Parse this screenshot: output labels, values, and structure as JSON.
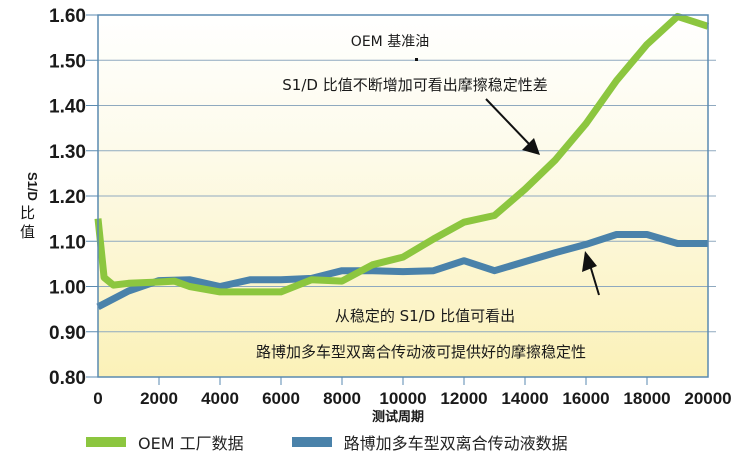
{
  "chart_data": {
    "type": "line",
    "title": "",
    "xlabel": "测试周期",
    "ylabel": "S1/D 比值",
    "xlim": [
      0,
      20000
    ],
    "ylim": [
      0.8,
      1.6
    ],
    "grid": true,
    "legend_position": "bottom",
    "x_ticks": [
      "0",
      "2000",
      "4000",
      "6000",
      "8000",
      "10000",
      "12000",
      "14000",
      "16000",
      "18000",
      "20000"
    ],
    "y_ticks": [
      "0.80",
      "0.90",
      "1.00",
      "1.10",
      "1.20",
      "1.30",
      "1.40",
      "1.50",
      "1.60"
    ],
    "series": [
      {
        "name": "OEM 工厂数据",
        "color": "#8cc63f",
        "x": [
          0,
          200,
          500,
          1000,
          2000,
          2500,
          3000,
          4000,
          5000,
          6000,
          7000,
          8000,
          9000,
          10000,
          11000,
          12000,
          13000,
          14000,
          15000,
          16000,
          17000,
          18000,
          19000,
          20000
        ],
        "values": [
          1.15,
          1.02,
          1.003,
          1.007,
          1.01,
          1.012,
          1.0,
          0.988,
          0.988,
          0.988,
          1.015,
          1.012,
          1.048,
          1.065,
          1.105,
          1.142,
          1.157,
          1.215,
          1.28,
          1.36,
          1.455,
          1.535,
          1.597,
          1.575
        ]
      },
      {
        "name": "路博加多车型双离合传动液数据",
        "color": "#4a82aa",
        "x": [
          0,
          1000,
          2000,
          3000,
          4000,
          5000,
          6000,
          7000,
          8000,
          9000,
          10000,
          11000,
          12000,
          13000,
          14000,
          15000,
          16000,
          17000,
          18000,
          19000,
          20000
        ],
        "values": [
          0.955,
          0.99,
          1.013,
          1.015,
          1.0,
          1.015,
          1.015,
          1.018,
          1.035,
          1.035,
          1.033,
          1.035,
          1.057,
          1.035,
          1.055,
          1.075,
          1.093,
          1.115,
          1.115,
          1.095,
          1.095
        ]
      }
    ],
    "annotations": {
      "oem_label": "OEM 基准油",
      "oem_note": "S1/D 比值不断增加可看出摩擦稳定性差",
      "stable_note": "从稳定的 S1/D 比值可看出",
      "product_note": "路博加多车型双离合传动液可提供好的摩擦稳定性"
    }
  }
}
